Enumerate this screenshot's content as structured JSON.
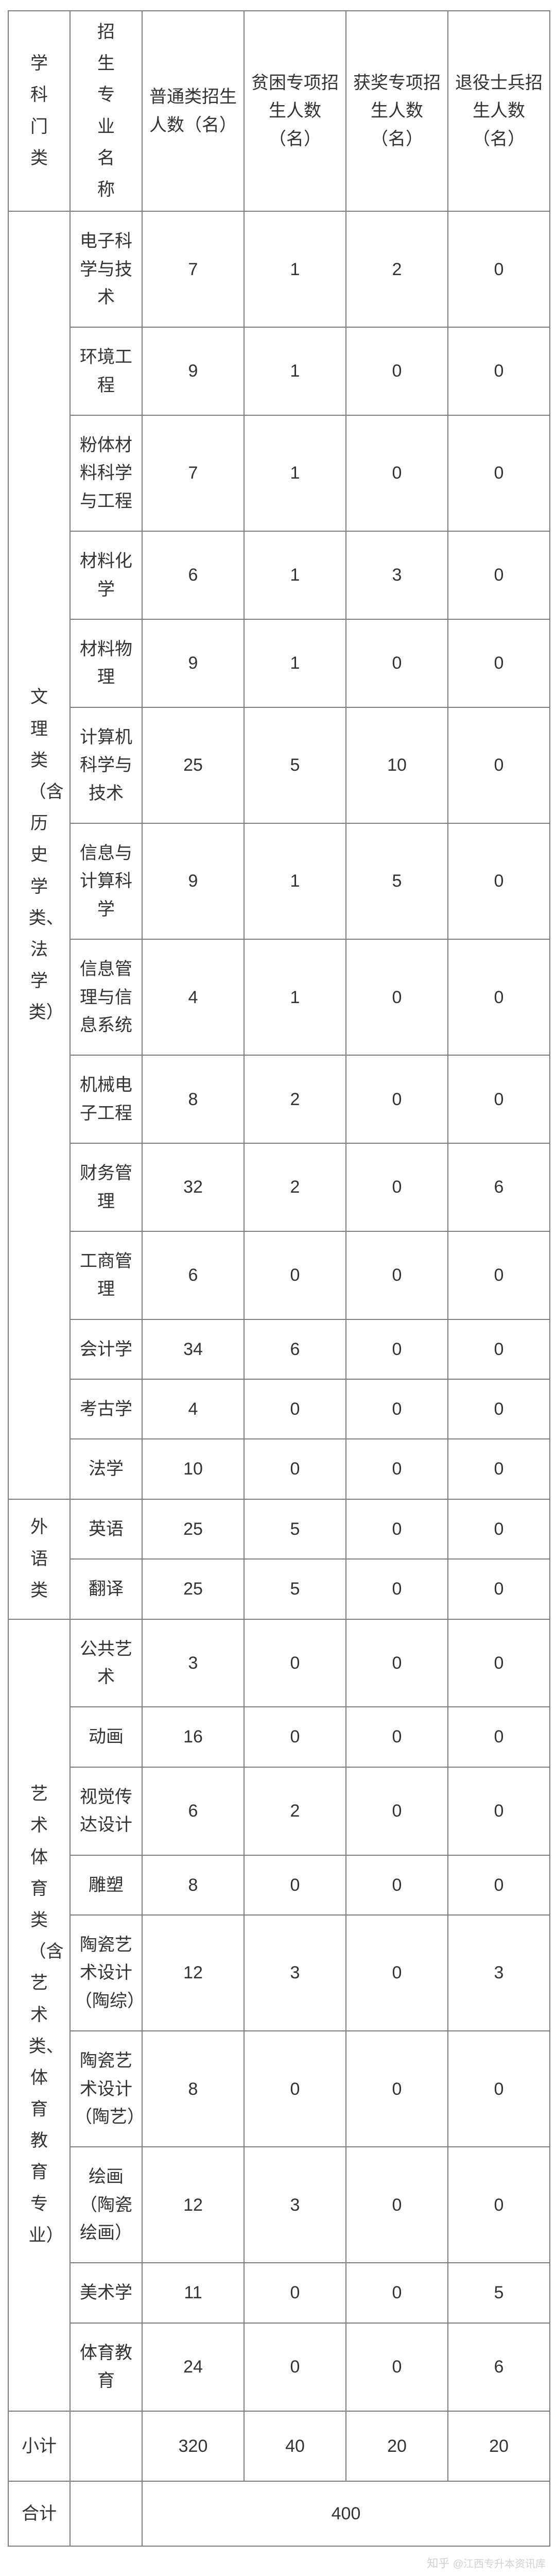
{
  "headers": {
    "category": "学科门类",
    "major": "招生专业名称",
    "normal": "普通类招生人数（名）",
    "poverty": "贫困专项招生人数（名）",
    "award": "获奖专项招生人数（名）",
    "veteran": "退役士兵招生人数（名）"
  },
  "categories": [
    {
      "name": "文理类（含历史学类、法学类）",
      "majors": [
        {
          "name": "电子科学与技术",
          "normal": "7",
          "poverty": "1",
          "award": "2",
          "veteran": "0"
        },
        {
          "name": "环境工程",
          "normal": "9",
          "poverty": "1",
          "award": "0",
          "veteran": "0"
        },
        {
          "name": "粉体材料科学与工程",
          "normal": "7",
          "poverty": "1",
          "award": "0",
          "veteran": "0"
        },
        {
          "name": "材料化学",
          "normal": "6",
          "poverty": "1",
          "award": "3",
          "veteran": "0"
        },
        {
          "name": "材料物理",
          "normal": "9",
          "poverty": "1",
          "award": "0",
          "veteran": "0"
        },
        {
          "name": "计算机科学与技术",
          "normal": "25",
          "poverty": "5",
          "award": "10",
          "veteran": "0"
        },
        {
          "name": "信息与计算科学",
          "normal": "9",
          "poverty": "1",
          "award": "5",
          "veteran": "0"
        },
        {
          "name": "信息管理与信息系统",
          "normal": "4",
          "poverty": "1",
          "award": "0",
          "veteran": "0"
        },
        {
          "name": "机械电子工程",
          "normal": "8",
          "poverty": "2",
          "award": "0",
          "veteran": "0"
        },
        {
          "name": "财务管理",
          "normal": "32",
          "poverty": "2",
          "award": "0",
          "veteran": "6"
        },
        {
          "name": "工商管理",
          "normal": "6",
          "poverty": "0",
          "award": "0",
          "veteran": "0"
        },
        {
          "name": "会计学",
          "normal": "34",
          "poverty": "6",
          "award": "0",
          "veteran": "0"
        },
        {
          "name": "考古学",
          "normal": "4",
          "poverty": "0",
          "award": "0",
          "veteran": "0"
        },
        {
          "name": "法学",
          "normal": "10",
          "poverty": "0",
          "award": "0",
          "veteran": "0"
        }
      ]
    },
    {
      "name": "外语类",
      "majors": [
        {
          "name": "英语",
          "normal": "25",
          "poverty": "5",
          "award": "0",
          "veteran": "0"
        },
        {
          "name": "翻译",
          "normal": "25",
          "poverty": "5",
          "award": "0",
          "veteran": "0"
        }
      ]
    },
    {
      "name": "艺术体育类（含艺术类、体育教育专业）",
      "majors": [
        {
          "name": "公共艺术",
          "normal": "3",
          "poverty": "0",
          "award": "0",
          "veteran": "0"
        },
        {
          "name": "动画",
          "normal": "16",
          "poverty": "0",
          "award": "0",
          "veteran": "0"
        },
        {
          "name": "视觉传达设计",
          "normal": "6",
          "poverty": "2",
          "award": "0",
          "veteran": "0"
        },
        {
          "name": "雕塑",
          "normal": "8",
          "poverty": "0",
          "award": "0",
          "veteran": "0"
        },
        {
          "name": "陶瓷艺术设计（陶综）",
          "normal": "12",
          "poverty": "3",
          "award": "0",
          "veteran": "3"
        },
        {
          "name": "陶瓷艺术设计（陶艺）",
          "normal": "8",
          "poverty": "0",
          "award": "0",
          "veteran": "0"
        },
        {
          "name": "绘画（陶瓷绘画）",
          "normal": "12",
          "poverty": "3",
          "award": "0",
          "veteran": "0"
        },
        {
          "name": "美术学",
          "normal": "11",
          "poverty": "0",
          "award": "0",
          "veteran": "5"
        },
        {
          "name": "体育教育",
          "normal": "24",
          "poverty": "0",
          "award": "0",
          "veteran": "6"
        }
      ]
    }
  ],
  "subtotal": {
    "label": "小计",
    "normal": "320",
    "poverty": "40",
    "award": "20",
    "veteran": "20"
  },
  "grand": {
    "label": "合计",
    "value": "400"
  },
  "watermark": {
    "brand": "知乎",
    "text": "@江西专升本资讯库"
  },
  "style": {
    "border_color": "#7d7d7d",
    "text_color": "#333333",
    "background": "#ffffff",
    "font_size": 34,
    "col_widths": [
      "120",
      "140",
      "198",
      "198",
      "198",
      "198"
    ]
  }
}
